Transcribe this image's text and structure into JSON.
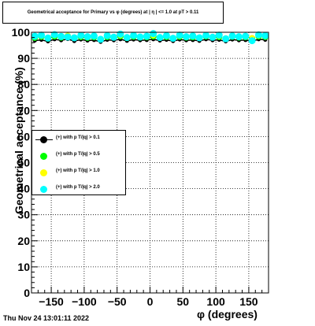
{
  "title": "Geometrical acceptance for Primary vs φ (degrees) at | η | <= 1.0 at pT > 0.11",
  "footer_timestamp": "Thu Nov 24 13:01:11 2022",
  "chart_data": {
    "type": "scatter",
    "xlabel": "φ (degrees)",
    "ylabel": "Geometrical acceptance (%)",
    "xlim": [
      -180,
      180
    ],
    "ylim": [
      0,
      100
    ],
    "grid": true,
    "legend_placement": "middle-left",
    "x_tick_labels": [
      "−150",
      "−100",
      "−50",
      "0",
      "50",
      "100",
      "150"
    ],
    "y_tick_labels": [
      "0",
      "10",
      "20",
      "30",
      "40",
      "50",
      "60",
      "70",
      "80",
      "90",
      "100"
    ],
    "x_ticks": [
      -150,
      -100,
      -50,
      0,
      50,
      100,
      150
    ],
    "y_ticks": [
      0,
      10,
      20,
      30,
      40,
      50,
      60,
      70,
      80,
      90,
      100
    ],
    "series": [
      {
        "name": "(+) with p T/|q| > 0.1",
        "color": "#000000",
        "marker": "circle",
        "connected": true,
        "x": [
          -175,
          -165,
          -155,
          -145,
          -135,
          -125,
          -115,
          -105,
          -95,
          -85,
          -75,
          -65,
          -55,
          -45,
          -35,
          -25,
          -15,
          -5,
          5,
          15,
          25,
          35,
          45,
          55,
          65,
          75,
          85,
          95,
          105,
          115,
          125,
          135,
          145,
          155,
          165,
          175
        ],
        "values": [
          96.8,
          97.1,
          96.5,
          97.3,
          96.9,
          97.4,
          96.6,
          97.2,
          96.8,
          97.0,
          96.3,
          97.1,
          96.9,
          97.3,
          96.7,
          97.2,
          96.9,
          97.0,
          97.3,
          96.8,
          97.1,
          96.6,
          97.2,
          96.9,
          97.0,
          96.7,
          97.3,
          96.9,
          97.1,
          96.5,
          97.2,
          96.9,
          97.0,
          96.6,
          97.3,
          97.1
        ]
      },
      {
        "name": "(+) with p T/|q| > 0.5",
        "color": "#00ff00",
        "marker": "circle",
        "connected": false,
        "x": [
          -175,
          -165,
          -155,
          -145,
          -135,
          -125,
          -115,
          -105,
          -95,
          -85,
          -75,
          -65,
          -55,
          -45,
          -35,
          -25,
          -15,
          -5,
          5,
          15,
          25,
          35,
          45,
          55,
          65,
          75,
          85,
          95,
          105,
          115,
          125,
          135,
          145,
          155,
          165,
          175
        ],
        "values": [
          97.9,
          98.3,
          97.6,
          98.4,
          98.0,
          98.6,
          97.8,
          98.2,
          97.9,
          98.1,
          97.4,
          98.2,
          98.0,
          98.5,
          97.8,
          98.3,
          98.0,
          98.1,
          98.4,
          97.9,
          98.2,
          97.7,
          98.3,
          98.0,
          98.1,
          97.8,
          98.4,
          98.0,
          98.2,
          97.6,
          98.3,
          98.0,
          98.1,
          97.7,
          98.4,
          98.2
        ]
      },
      {
        "name": "(+) with p T/|q| > 1.0",
        "color": "#ffff00",
        "marker": "circle",
        "connected": false,
        "x": [
          -175,
          -165,
          -155,
          -145,
          -135,
          -125,
          -115,
          -105,
          -95,
          -85,
          -75,
          -65,
          -55,
          -45,
          -35,
          -25,
          -15,
          -5,
          5,
          15,
          25,
          35,
          45,
          55,
          65,
          75,
          85,
          95,
          105,
          115,
          125,
          135,
          145,
          155,
          165,
          175
        ],
        "values": [
          98.2,
          98.5,
          97.9,
          98.7,
          98.3,
          98.8,
          98.0,
          98.4,
          98.1,
          98.3,
          97.6,
          98.4,
          98.2,
          98.7,
          98.0,
          98.6,
          98.2,
          98.3,
          98.7,
          98.1,
          98.4,
          97.9,
          98.5,
          98.2,
          98.3,
          98.0,
          98.6,
          98.2,
          98.4,
          97.8,
          98.5,
          98.2,
          98.3,
          97.9,
          98.6,
          98.4
        ]
      },
      {
        "name": "(+) with p T/|q| > 2.0",
        "color": "#00ffff",
        "marker": "circle",
        "connected": false,
        "x": [
          -175,
          -165,
          -155,
          -145,
          -135,
          -125,
          -115,
          -105,
          -95,
          -85,
          -75,
          -65,
          -55,
          -45,
          -35,
          -25,
          -15,
          -5,
          5,
          15,
          25,
          35,
          45,
          55,
          65,
          75,
          85,
          95,
          105,
          115,
          125,
          135,
          145,
          155,
          165,
          175
        ],
        "values": [
          98.5,
          98.9,
          97.8,
          99.1,
          98.4,
          98.2,
          97.9,
          98.8,
          98.3,
          98.6,
          97.3,
          98.7,
          98.1,
          99.3,
          98.0,
          98.8,
          98.2,
          98.5,
          99.5,
          98.0,
          98.7,
          97.7,
          98.9,
          98.3,
          98.6,
          97.9,
          98.8,
          98.1,
          98.9,
          97.5,
          98.6,
          98.3,
          98.5,
          96.8,
          99.0,
          98.7
        ]
      }
    ]
  }
}
